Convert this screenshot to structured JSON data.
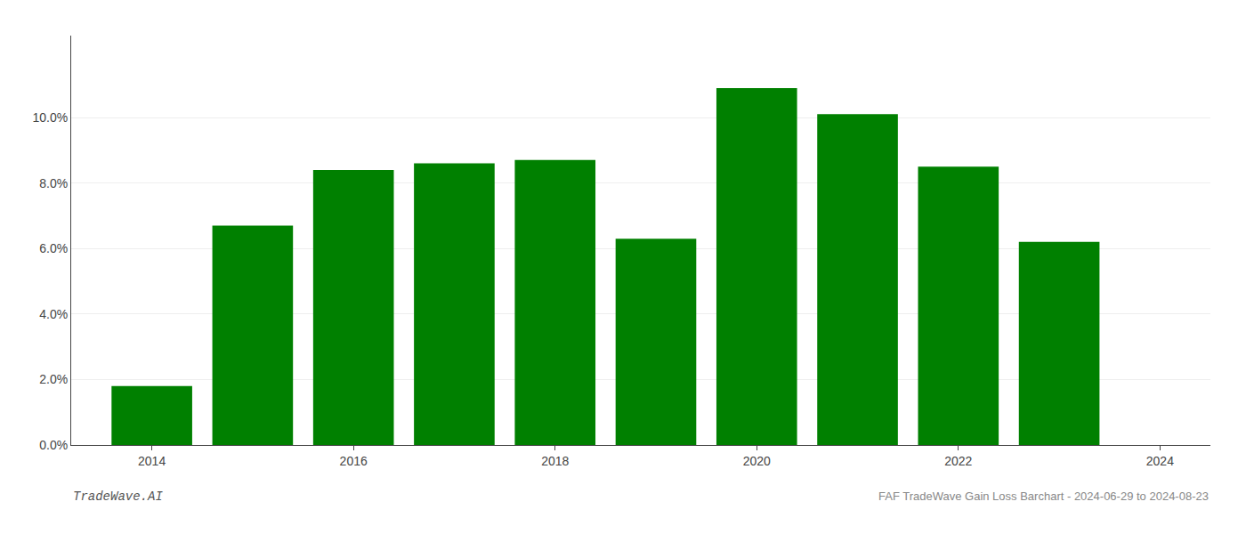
{
  "chart_data": {
    "type": "bar",
    "x": [
      2014,
      2015,
      2016,
      2017,
      2018,
      2019,
      2020,
      2021,
      2022,
      2023
    ],
    "values": [
      0.018,
      0.067,
      0.084,
      0.086,
      0.087,
      0.063,
      0.109,
      0.101,
      0.085,
      0.062
    ],
    "color": "#008000",
    "xlim": [
      2013.2,
      2024.5
    ],
    "xticks": [
      2014,
      2016,
      2018,
      2020,
      2022,
      2024
    ],
    "ylim": [
      0,
      0.125
    ],
    "yticks": [
      {
        "value": 0.0,
        "label": "0.0%"
      },
      {
        "value": 0.02,
        "label": "2.0%"
      },
      {
        "value": 0.04,
        "label": "4.0%"
      },
      {
        "value": 0.06,
        "label": "6.0%"
      },
      {
        "value": 0.08,
        "label": "8.0%"
      },
      {
        "value": 0.1,
        "label": "10.0%"
      }
    ],
    "grid": true,
    "annotations": [
      "TradeWave.AI",
      "FAF TradeWave Gain Loss Barchart - 2024-06-29 to 2024-08-23"
    ]
  }
}
